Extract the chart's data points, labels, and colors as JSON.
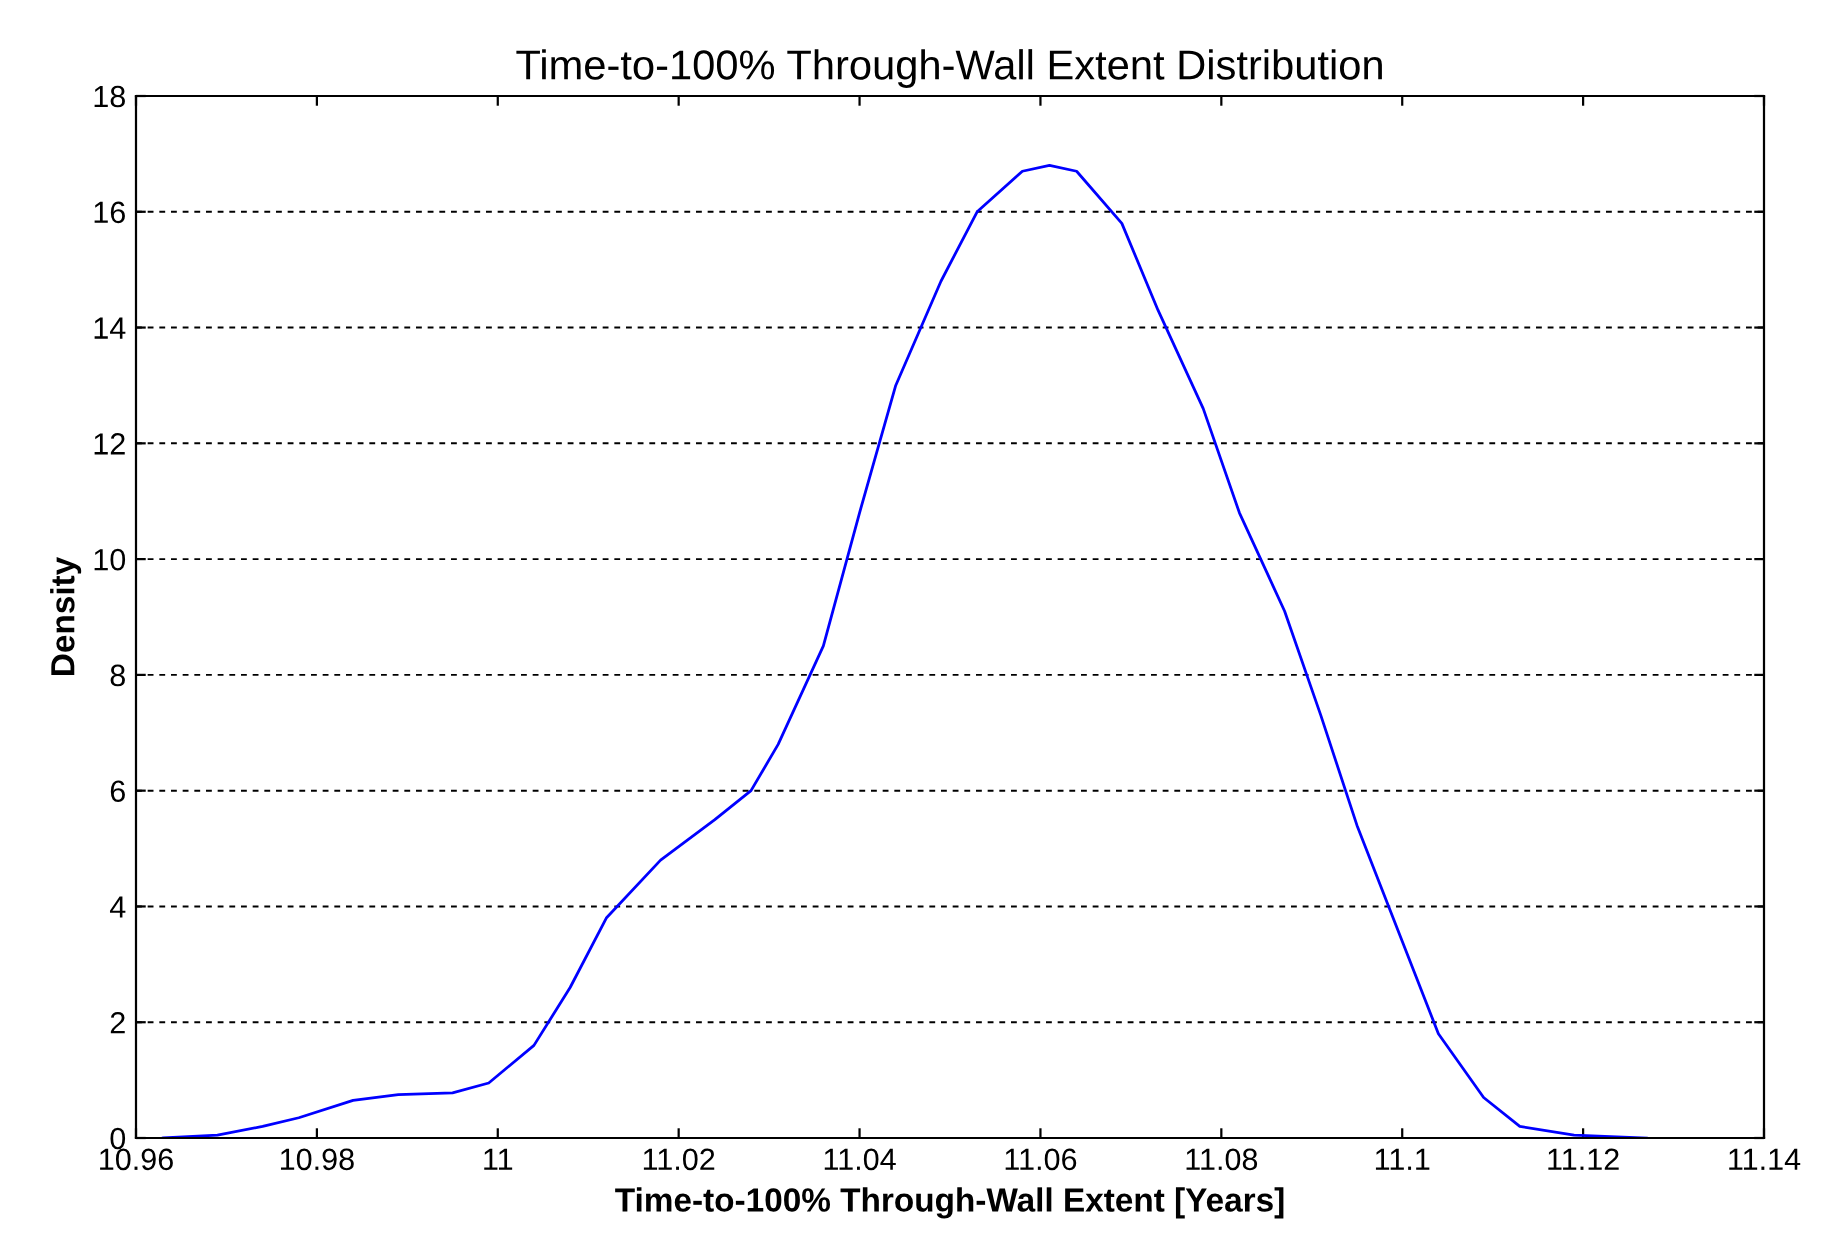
{
  "chart_data": {
    "type": "line",
    "title": "Time-to-100% Through-Wall Extent Distribution",
    "xlabel": "Time-to-100% Through-Wall Extent [Years]",
    "ylabel": "Density",
    "series": [
      {
        "color": "#0000ff",
        "x": [
          10.963,
          10.969,
          10.974,
          10.978,
          10.984,
          10.989,
          10.995,
          10.999,
          11.004,
          11.008,
          11.012,
          11.018,
          11.024,
          11.028,
          11.031,
          11.036,
          11.04,
          11.044,
          11.049,
          11.053,
          11.058,
          11.061,
          11.064,
          11.069,
          11.073,
          11.078,
          11.082,
          11.087,
          11.091,
          11.095,
          11.1,
          11.104,
          11.109,
          11.113,
          11.119,
          11.127
        ],
        "values": [
          0,
          0.05,
          0.2,
          0.35,
          0.65,
          0.75,
          0.78,
          0.95,
          1.6,
          2.6,
          3.8,
          4.8,
          5.5,
          6.0,
          6.8,
          8.5,
          10.8,
          13.0,
          14.8,
          16.0,
          16.7,
          16.8,
          16.7,
          15.8,
          14.3,
          12.6,
          10.8,
          9.1,
          7.3,
          5.4,
          3.4,
          1.8,
          0.7,
          0.2,
          0.05,
          0
        ]
      }
    ],
    "xlim": [
      10.96,
      11.14
    ],
    "xticks": [
      10.96,
      10.98,
      11,
      11.02,
      11.04,
      11.06,
      11.08,
      11.1,
      11.12,
      11.14
    ],
    "ylim": [
      0,
      18
    ],
    "yticks": [
      0,
      2,
      4,
      6,
      8,
      10,
      12,
      14,
      16,
      18
    ],
    "grid": "y",
    "line_style": "solid",
    "marker": "none",
    "legend": false
  }
}
